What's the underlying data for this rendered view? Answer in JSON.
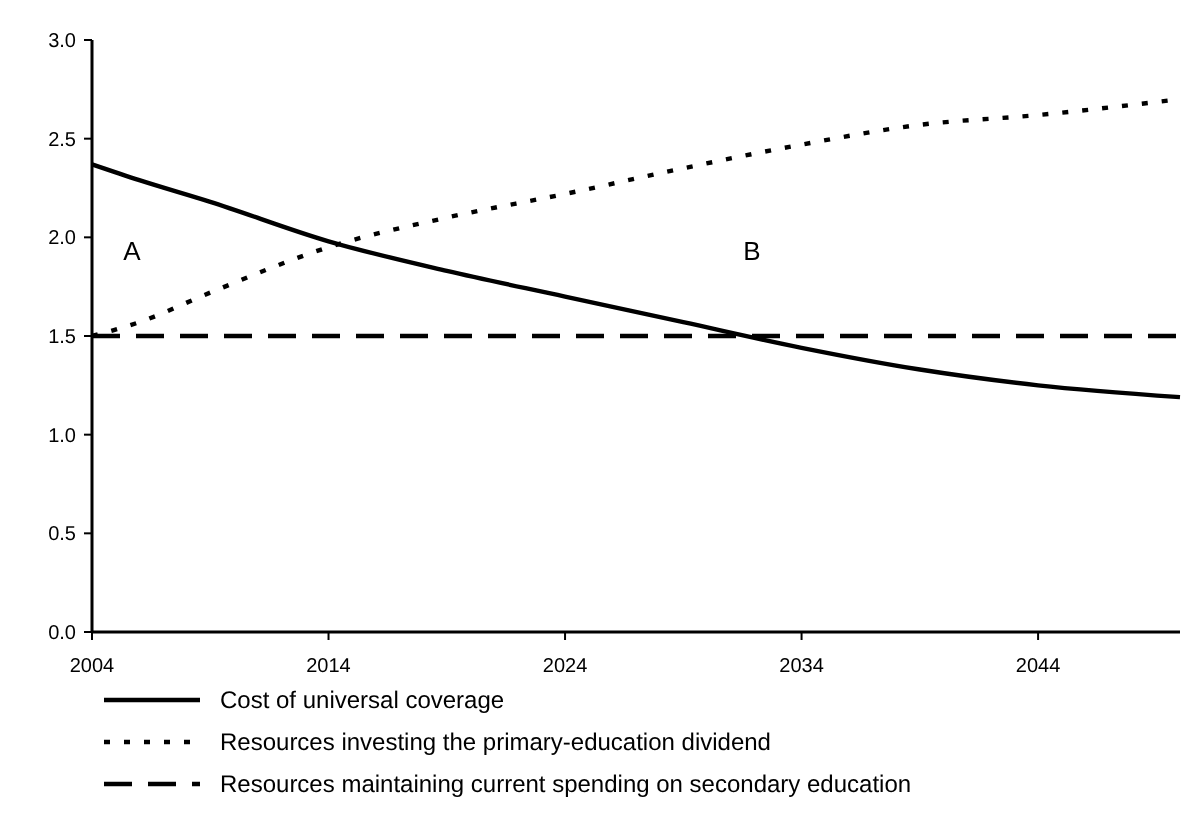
{
  "chart_data": {
    "type": "line",
    "x": [
      2004,
      2006,
      2009,
      2014,
      2019,
      2024,
      2029,
      2034,
      2039,
      2044,
      2050
    ],
    "series": [
      {
        "name": "Cost of universal coverage",
        "color": "#000000",
        "line_style": "solid",
        "values": [
          2.37,
          2.29,
          2.18,
          1.98,
          1.83,
          1.7,
          1.57,
          1.44,
          1.33,
          1.25,
          1.19
        ]
      },
      {
        "name": "Resources investing the primary-education dividend",
        "color": "#000000",
        "line_style": "dotted",
        "values": [
          1.5,
          1.57,
          1.72,
          1.95,
          2.1,
          2.22,
          2.35,
          2.47,
          2.57,
          2.62,
          2.7
        ]
      },
      {
        "name": "Resources maintaining current spending on secondary education",
        "color": "#000000",
        "line_style": "dashed",
        "values": [
          1.5,
          1.5,
          1.5,
          1.5,
          1.5,
          1.5,
          1.5,
          1.5,
          1.5,
          1.5,
          1.5
        ]
      }
    ],
    "xlim": [
      2004,
      2050
    ],
    "xticks": [
      2004,
      2014,
      2024,
      2034,
      2044
    ],
    "ylim": [
      0,
      3
    ],
    "yticks": [
      {
        "value": 0,
        "label": "0.0"
      },
      {
        "value": 0.5,
        "label": "0.5"
      },
      {
        "value": 1,
        "label": "1.0"
      },
      {
        "value": 1.5,
        "label": "1.5"
      },
      {
        "value": 2,
        "label": "2.0"
      },
      {
        "value": 2.5,
        "label": "2.5"
      },
      {
        "value": 3,
        "label": "3.0"
      }
    ],
    "annotations": [
      "A",
      "B"
    ],
    "grid": false,
    "legend": "bottom",
    "marker": "none"
  }
}
